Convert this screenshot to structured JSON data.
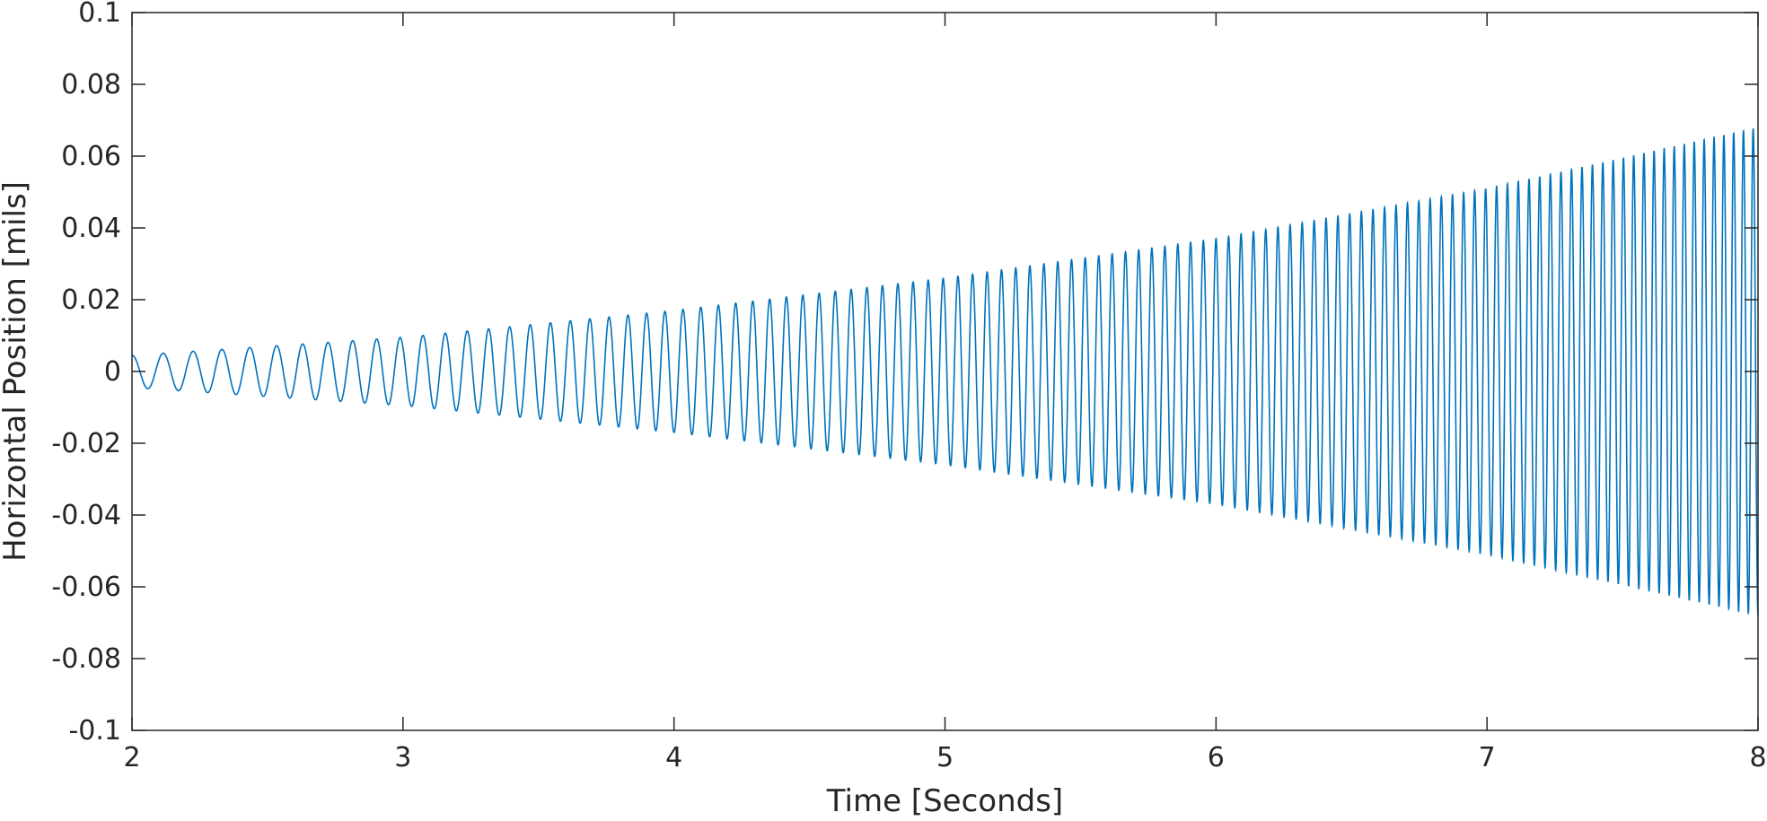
{
  "chart_data": {
    "type": "line",
    "title": "",
    "xlabel": "Time [Seconds]",
    "ylabel": "Horizontal Position [mils]",
    "xlim": [
      2,
      8
    ],
    "ylim": [
      -0.1,
      0.1
    ],
    "x_ticks": [
      2,
      3,
      4,
      5,
      6,
      7,
      8
    ],
    "x_tick_labels": [
      "2",
      "3",
      "4",
      "5",
      "6",
      "7",
      "8"
    ],
    "y_ticks": [
      0.1,
      0.08,
      0.06,
      0.04,
      0.02,
      0,
      -0.02,
      -0.04,
      -0.06,
      -0.08,
      -0.1
    ],
    "y_tick_labels": [
      "0.1",
      "0.08",
      "0.06",
      "0.04",
      "0.02",
      "0",
      "-0.02",
      "-0.04",
      "-0.06",
      "-0.08",
      "-0.1"
    ],
    "grid": false,
    "legend": "none",
    "series": [
      {
        "color": "#0072bd",
        "description_of_shape": "growing oscillation (chirp)",
        "envelope_x": [
          2,
          3,
          4,
          5,
          6,
          7,
          8
        ],
        "envelope_amplitude": [
          0.0045,
          0.0095,
          0.017,
          0.026,
          0.037,
          0.051,
          0.068
        ],
        "frequency_start_hz": 8.5,
        "frequency_end_hz": 28
      }
    ]
  }
}
